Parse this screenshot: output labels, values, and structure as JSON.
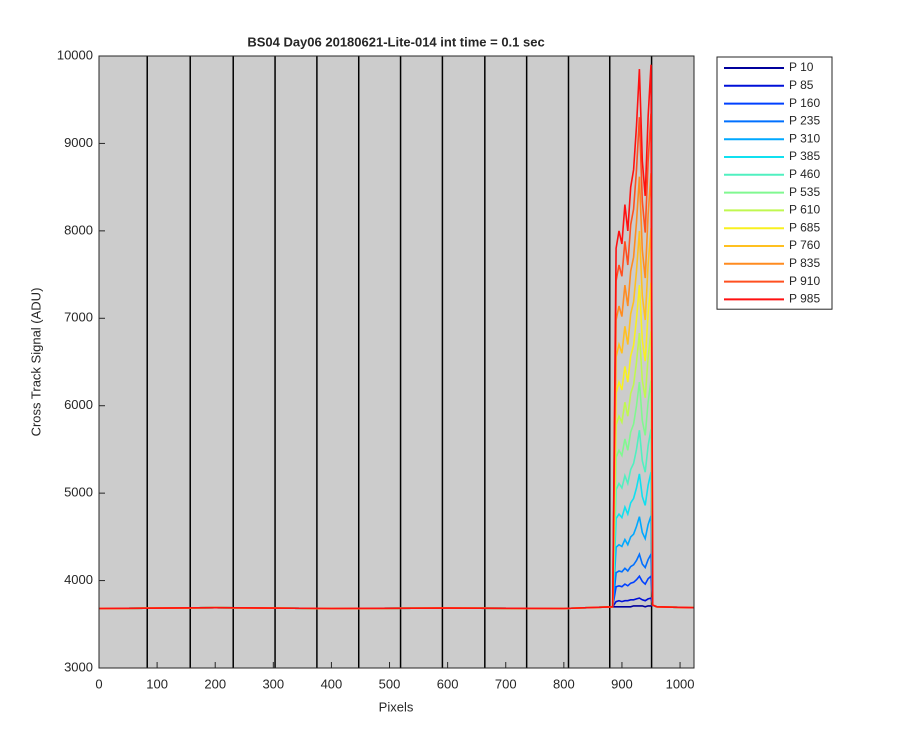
{
  "chart_data": {
    "type": "line",
    "title": "BS04 Day06 20180621-Lite-014 int time = 0.1 sec",
    "xlabel": "Pixels",
    "ylabel": "Cross Track Signal (ADU)",
    "xlim": [
      0,
      1024
    ],
    "ylim": [
      3000,
      10000
    ],
    "xticks": [
      0,
      100,
      200,
      300,
      400,
      500,
      600,
      700,
      800,
      900,
      1000
    ],
    "yticks": [
      3000,
      4000,
      5000,
      6000,
      7000,
      8000,
      9000,
      10000
    ],
    "background": "#cccccc",
    "vlines": [
      83,
      157,
      231,
      303,
      375,
      447,
      519,
      591,
      664,
      736,
      808,
      879,
      951
    ],
    "legend": "outside-right",
    "x": [
      0,
      200,
      400,
      600,
      800,
      884,
      890,
      895,
      900,
      905,
      910,
      915,
      920,
      925,
      930,
      935,
      940,
      945,
      950,
      953,
      960,
      1024
    ],
    "series": [
      {
        "name": "P 10",
        "color": "#00009c",
        "values": [
          3680,
          3690,
          3680,
          3685,
          3680,
          3700,
          3700,
          3700,
          3700,
          3700,
          3700,
          3700,
          3710,
          3710,
          3710,
          3710,
          3700,
          3710,
          3710,
          3720,
          3700,
          3690
        ]
      },
      {
        "name": "P 85",
        "color": "#0010d8",
        "values": [
          3680,
          3690,
          3680,
          3685,
          3680,
          3700,
          3760,
          3770,
          3760,
          3770,
          3770,
          3780,
          3780,
          3790,
          3800,
          3780,
          3770,
          3790,
          3800,
          3720,
          3700,
          3690
        ]
      },
      {
        "name": "P 160",
        "color": "#0040ff",
        "values": [
          3680,
          3690,
          3680,
          3685,
          3680,
          3700,
          3930,
          3940,
          3930,
          3960,
          3940,
          3970,
          3980,
          4010,
          4050,
          3990,
          3960,
          4020,
          4050,
          3720,
          3700,
          3690
        ]
      },
      {
        "name": "P 235",
        "color": "#0070ff",
        "values": [
          3680,
          3690,
          3680,
          3685,
          3680,
          3700,
          4090,
          4110,
          4100,
          4140,
          4110,
          4160,
          4180,
          4230,
          4300,
          4190,
          4150,
          4240,
          4300,
          3720,
          3700,
          3690
        ]
      },
      {
        "name": "P 310",
        "color": "#00a8ff",
        "values": [
          3680,
          3690,
          3680,
          3685,
          3680,
          3700,
          4380,
          4410,
          4390,
          4470,
          4410,
          4500,
          4530,
          4620,
          4730,
          4550,
          4480,
          4640,
          4740,
          3720,
          3700,
          3690
        ]
      },
      {
        "name": "P 385",
        "color": "#10e0f0",
        "values": [
          3680,
          3690,
          3680,
          3685,
          3680,
          3700,
          4710,
          4760,
          4720,
          4840,
          4760,
          4890,
          4940,
          5060,
          5220,
          4960,
          4860,
          5090,
          5240,
          3720,
          3700,
          3690
        ]
      },
      {
        "name": "P 460",
        "color": "#50f0c0",
        "values": [
          3680,
          3690,
          3680,
          3685,
          3680,
          3700,
          5040,
          5110,
          5060,
          5200,
          5110,
          5270,
          5340,
          5500,
          5720,
          5370,
          5240,
          5540,
          5730,
          3720,
          3700,
          3690
        ]
      },
      {
        "name": "P 535",
        "color": "#80f890",
        "values": [
          3680,
          3690,
          3680,
          3685,
          3680,
          3700,
          5410,
          5490,
          5430,
          5620,
          5490,
          5700,
          5790,
          6000,
          6270,
          5830,
          5660,
          6040,
          6290,
          3720,
          3700,
          3690
        ]
      },
      {
        "name": "P 610",
        "color": "#c0f850",
        "values": [
          3680,
          3690,
          3680,
          3685,
          3680,
          3700,
          5780,
          5880,
          5810,
          6040,
          5880,
          6140,
          6240,
          6500,
          6830,
          6290,
          6090,
          6550,
          6850,
          3720,
          3700,
          3690
        ]
      },
      {
        "name": "P 685",
        "color": "#f8f020",
        "values": [
          3680,
          3690,
          3680,
          3685,
          3680,
          3700,
          6150,
          6270,
          6180,
          6450,
          6270,
          6570,
          6690,
          6990,
          7380,
          6750,
          6510,
          7050,
          7410,
          3720,
          3700,
          3690
        ]
      },
      {
        "name": "P 760",
        "color": "#ffc020",
        "values": [
          3680,
          3690,
          3680,
          3685,
          3680,
          3700,
          6560,
          6700,
          6600,
          6910,
          6700,
          7050,
          7190,
          7540,
          8000,
          7260,
          6980,
          7610,
          8030,
          3720,
          3700,
          3690
        ]
      },
      {
        "name": "P 835",
        "color": "#ff8c20",
        "values": [
          3680,
          3690,
          3680,
          3685,
          3680,
          3700,
          6980,
          7140,
          7020,
          7380,
          7140,
          7540,
          7700,
          8100,
          8620,
          7780,
          7460,
          8180,
          8660,
          3720,
          3700,
          3690
        ]
      },
      {
        "name": "P 910",
        "color": "#ff5020",
        "values": [
          3680,
          3690,
          3680,
          3685,
          3680,
          3700,
          7430,
          7610,
          7480,
          7880,
          7610,
          8070,
          8250,
          8700,
          9300,
          8340,
          7980,
          8790,
          9340,
          3720,
          3700,
          3690
        ]
      },
      {
        "name": "P 985",
        "color": "#ff1010",
        "values": [
          3680,
          3690,
          3680,
          3685,
          3680,
          3700,
          7800,
          8000,
          7850,
          8300,
          8000,
          8500,
          8700,
          9200,
          9850,
          8800,
          8400,
          9300,
          9900,
          3720,
          3700,
          3690
        ]
      }
    ]
  }
}
